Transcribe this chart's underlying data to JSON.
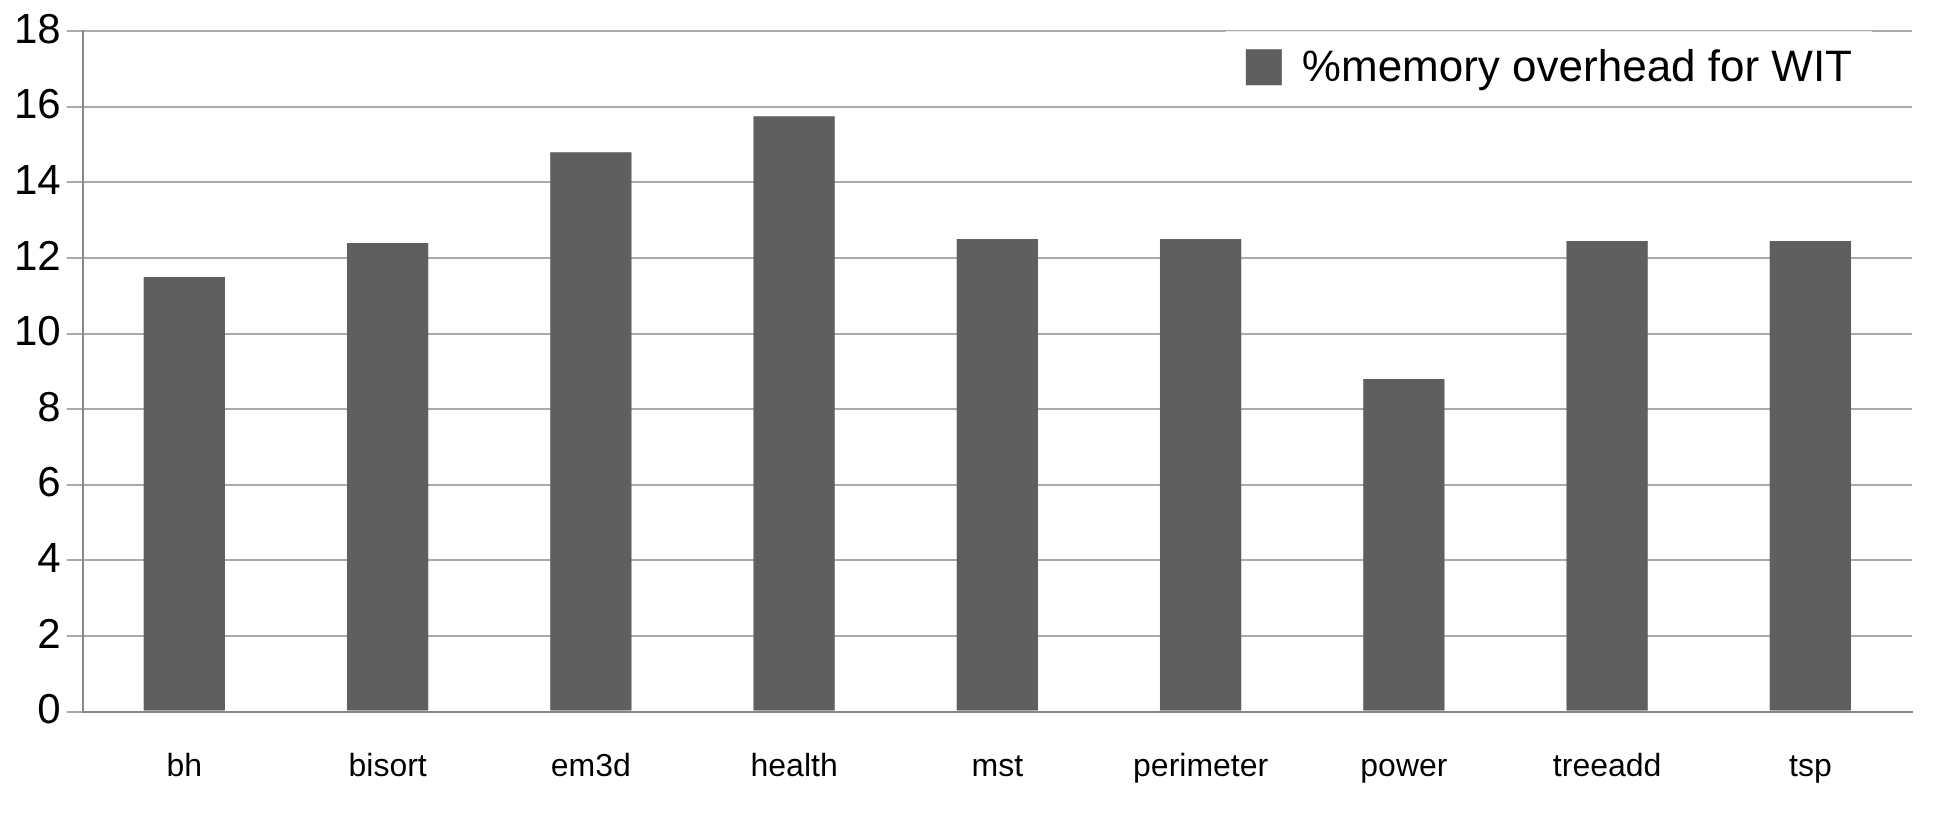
{
  "chart_data": {
    "type": "bar",
    "categories": [
      "bh",
      "bisort",
      "em3d",
      "health",
      "mst",
      "perimeter",
      "power",
      "treeadd",
      "tsp"
    ],
    "series": [
      {
        "name": "%memory overhead for WIT",
        "color": "#5f5f5f",
        "values": [
          11.5,
          12.4,
          14.8,
          15.75,
          12.5,
          12.5,
          8.8,
          12.45,
          12.45
        ]
      }
    ],
    "ylim": [
      0,
      18
    ],
    "yticks": [
      0,
      2,
      4,
      6,
      8,
      10,
      12,
      14,
      16,
      18
    ],
    "grid": "y",
    "legend": "top right"
  }
}
